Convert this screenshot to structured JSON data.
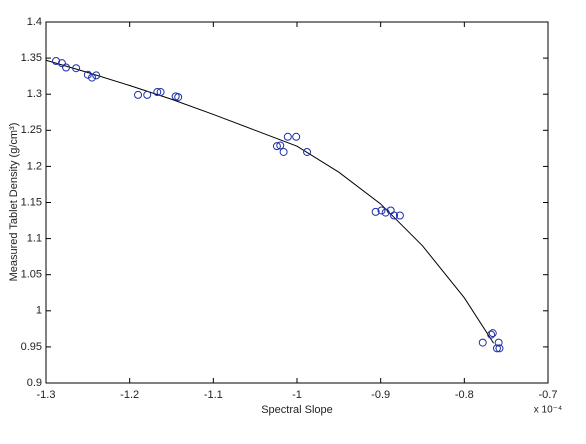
{
  "chart_data": {
    "type": "scatter",
    "xlabel": "Spectral Slope",
    "ylabel": "Measured Tablet Density (g/cm³)",
    "x_multiplier": "x 10⁻⁴",
    "xlim": [
      -1.3,
      -0.7
    ],
    "xticks": [
      -1.3,
      -1.2,
      -1.1,
      -1,
      -0.9,
      -0.8,
      -0.7
    ],
    "ylim": [
      0.9,
      1.4
    ],
    "yticks": [
      0.9,
      0.95,
      1,
      1.05,
      1.1,
      1.15,
      1.2,
      1.25,
      1.3,
      1.35,
      1.4
    ],
    "grid": false,
    "points": {
      "color": "#1f2fa8",
      "x": [
        -1.288,
        -1.281,
        -1.276,
        -1.264,
        -1.25,
        -1.245,
        -1.24,
        -1.19,
        -1.179,
        -1.167,
        -1.163,
        -1.145,
        -1.142,
        -1.024,
        -1.02,
        -1.016,
        -1.011,
        -1.001,
        -0.988,
        -0.906,
        -0.899,
        -0.894,
        -0.888,
        -0.884,
        -0.877,
        -0.778,
        -0.768,
        -0.766,
        -0.761,
        -0.758,
        -0.759
      ],
      "y": [
        1.346,
        1.343,
        1.337,
        1.336,
        1.327,
        1.323,
        1.326,
        1.299,
        1.299,
        1.303,
        1.303,
        1.297,
        1.296,
        1.228,
        1.229,
        1.22,
        1.241,
        1.241,
        1.22,
        1.137,
        1.139,
        1.136,
        1.139,
        1.132,
        1.132,
        0.956,
        0.967,
        0.969,
        0.948,
        0.948,
        0.956
      ]
    },
    "fit": {
      "color": "#000000",
      "x": [
        -1.3,
        -1.25,
        -1.2,
        -1.15,
        -1.1,
        -1.05,
        -1,
        -0.95,
        -0.9,
        -0.85,
        -0.8,
        -0.765
      ],
      "y": [
        1.347,
        1.33,
        1.312,
        1.293,
        1.272,
        1.25,
        1.228,
        1.192,
        1.148,
        1.09,
        1.018,
        0.955
      ]
    }
  }
}
